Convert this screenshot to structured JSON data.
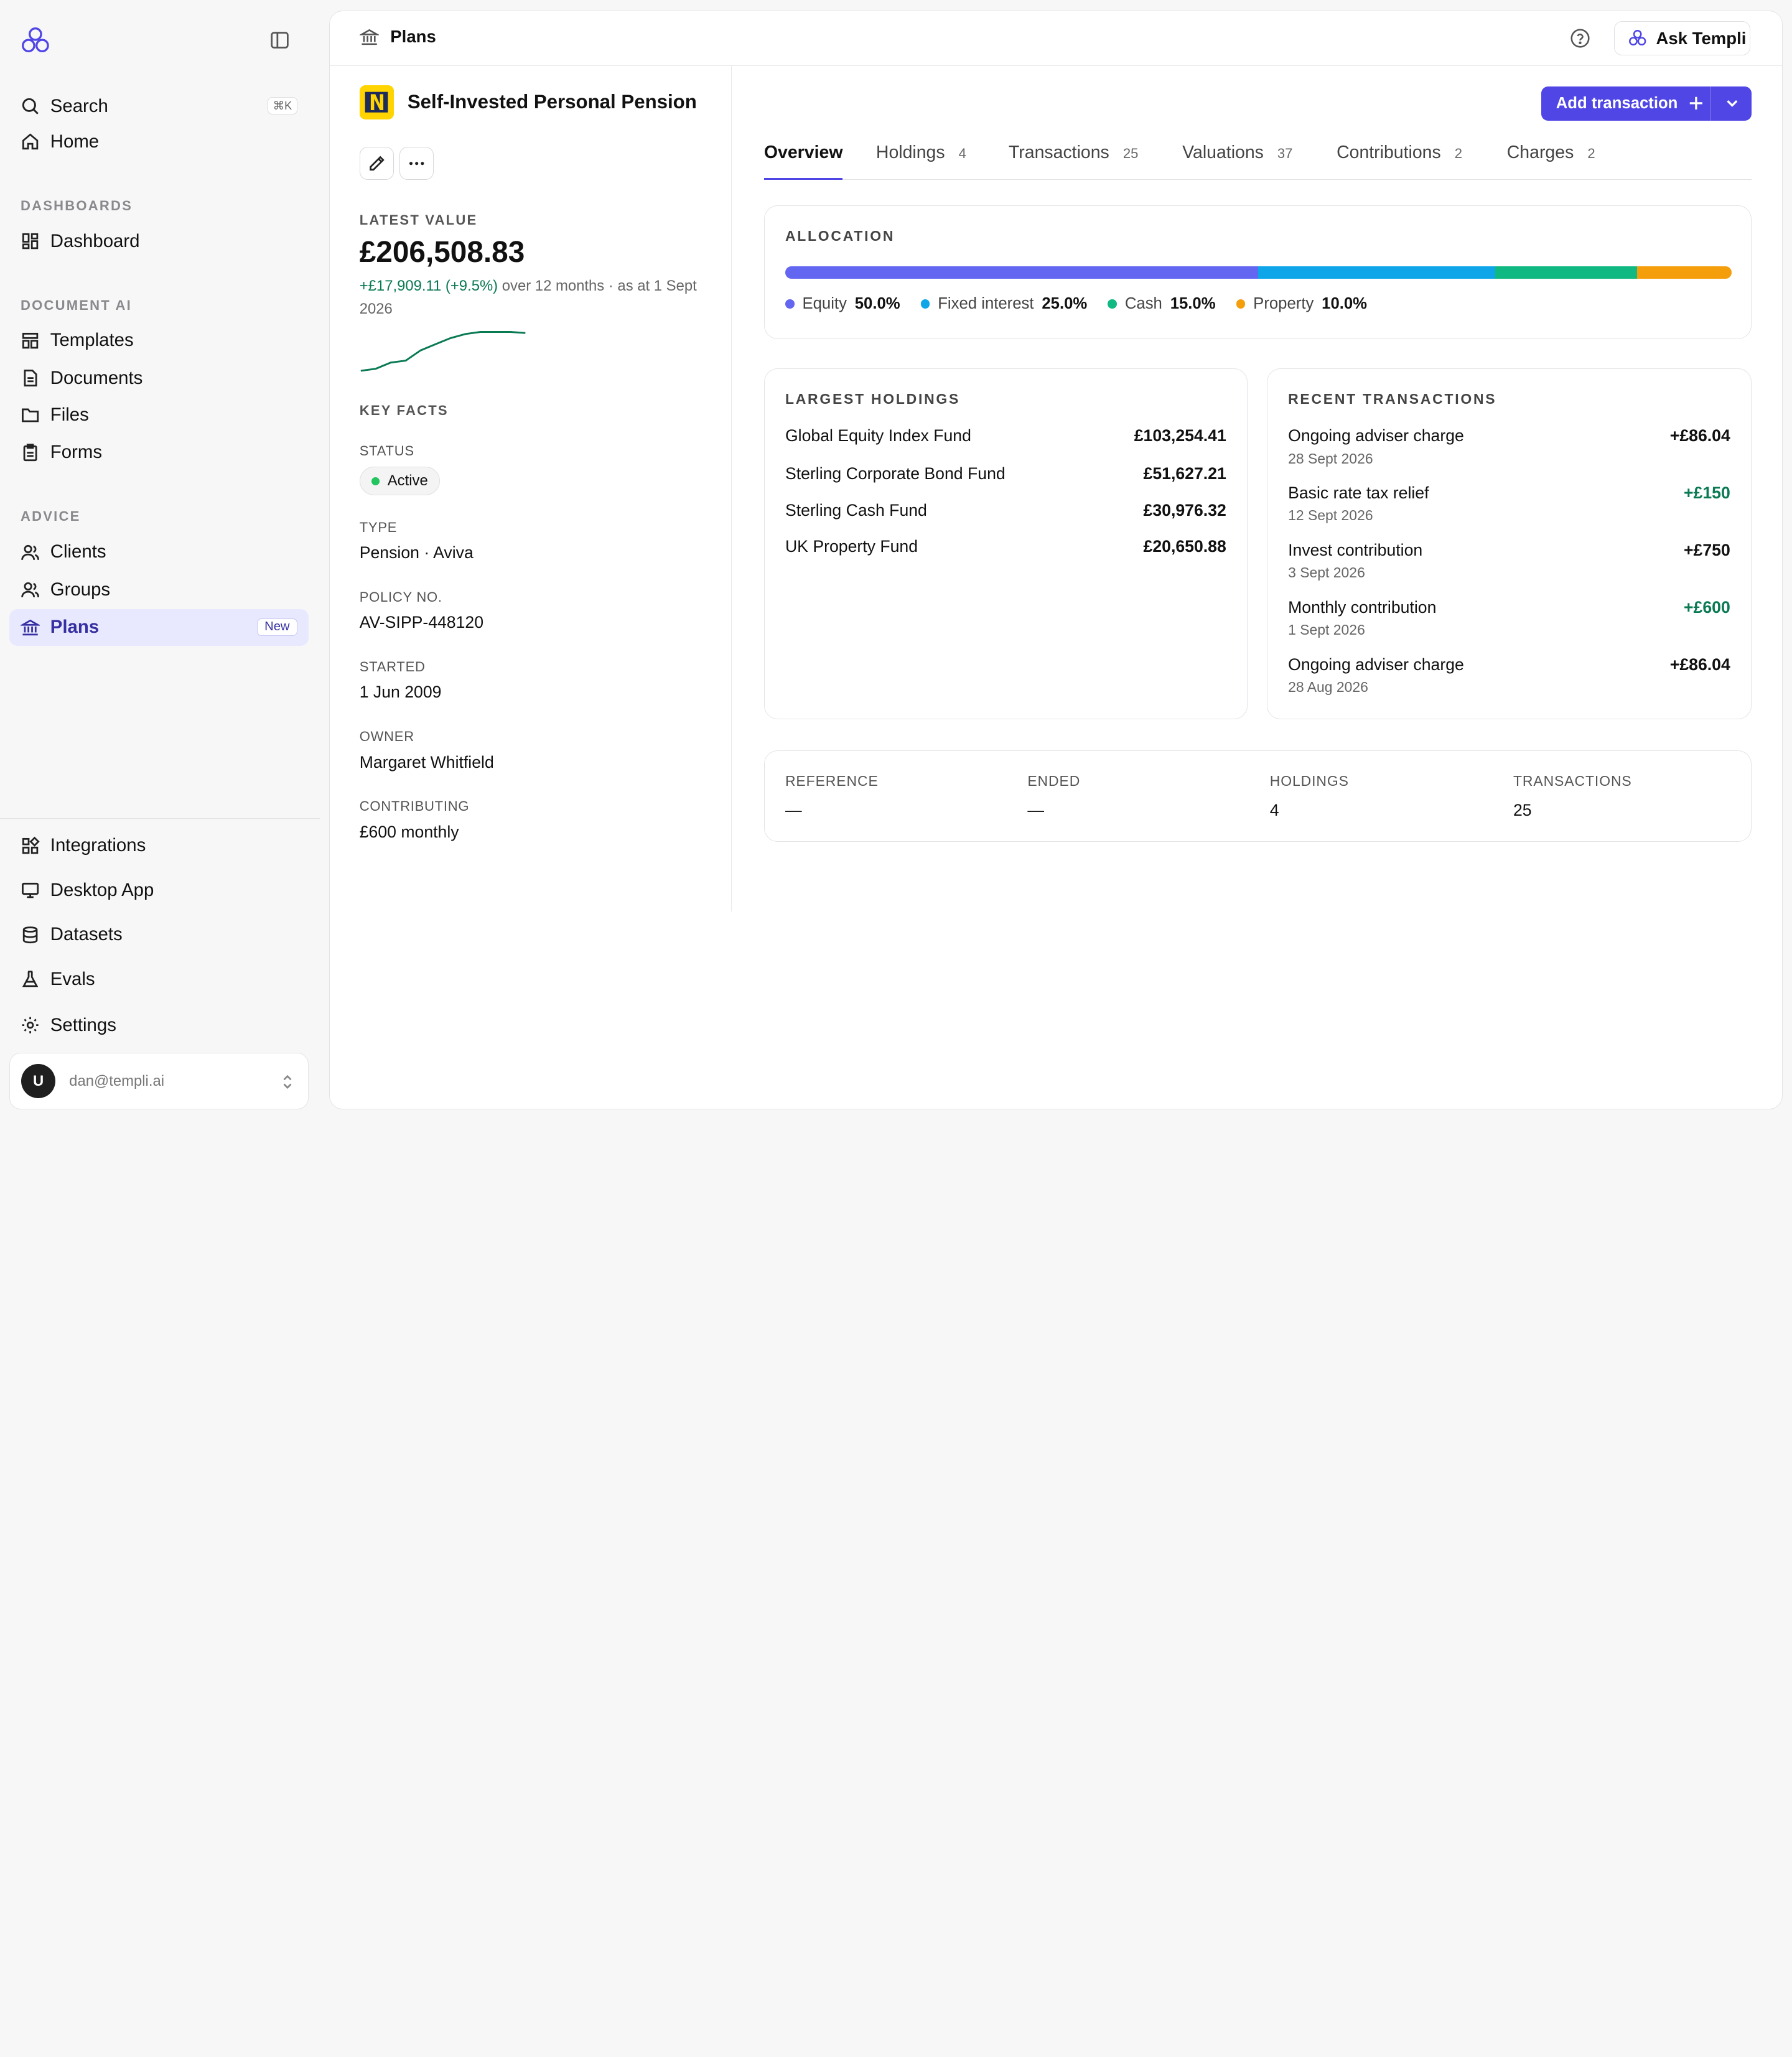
{
  "sidebar": {
    "search_label": "Search",
    "search_shortcut": "⌘K",
    "home_label": "Home",
    "sections": [
      "DASHBOARDS",
      "DOCUMENT AI",
      "ADVICE"
    ],
    "dashboard_label": "Dashboard",
    "templates_label": "Templates",
    "documents_label": "Documents",
    "files_label": "Files",
    "forms_label": "Forms",
    "clients_label": "Clients",
    "groups_label": "Groups",
    "plans_label": "Plans",
    "plans_badge": "New",
    "integrations_label": "Integrations",
    "desktop_label": "Desktop App",
    "datasets_label": "Datasets",
    "evals_label": "Evals",
    "settings_label": "Settings",
    "user_initial": "U",
    "user_email": "dan@templi.ai"
  },
  "header": {
    "breadcrumb": "Plans",
    "ask_label": "Ask Templi"
  },
  "plan": {
    "title": "Self-Invested Personal Pension",
    "latest_value_label": "LATEST VALUE",
    "latest_value": "£206,508.83",
    "change": "+£17,909.11 (+9.5%)",
    "change_suffix": " over 12 months · as at 1 Sept 2026",
    "sparkline": [
      0,
      1,
      4,
      5,
      10,
      13,
      16,
      18,
      19,
      19,
      19,
      18.5
    ],
    "key_facts_label": "KEY FACTS",
    "facts": {
      "status_label": "STATUS",
      "status": "Active",
      "type_label": "TYPE",
      "type": "Pension · Aviva",
      "policy_label": "POLICY NO.",
      "policy": "AV-SIPP-448120",
      "started_label": "STARTED",
      "started": "1 Jun 2009",
      "owner_label": "OWNER",
      "owner": "Margaret Whitfield",
      "contributing_label": "CONTRIBUTING",
      "contributing": "£600 monthly"
    }
  },
  "actions": {
    "add_transaction": "Add transaction"
  },
  "tabs": [
    {
      "label": "Overview",
      "count": ""
    },
    {
      "label": "Holdings",
      "count": "4"
    },
    {
      "label": "Transactions",
      "count": "25"
    },
    {
      "label": "Valuations",
      "count": "37"
    },
    {
      "label": "Contributions",
      "count": "2"
    },
    {
      "label": "Charges",
      "count": "2"
    }
  ],
  "allocation": {
    "label": "ALLOCATION",
    "items": [
      {
        "name": "Equity",
        "pct": "50.0%",
        "value": 50,
        "color": "#6366f1"
      },
      {
        "name": "Fixed interest",
        "pct": "25.0%",
        "value": 25,
        "color": "#0ea5e9"
      },
      {
        "name": "Cash",
        "pct": "15.0%",
        "value": 15,
        "color": "#10b981"
      },
      {
        "name": "Property",
        "pct": "10.0%",
        "value": 10,
        "color": "#f59e0b"
      }
    ]
  },
  "holdings": {
    "label": "LARGEST HOLDINGS",
    "rows": [
      {
        "name": "Global Equity Index Fund",
        "value": "£103,254.41"
      },
      {
        "name": "Sterling Corporate Bond Fund",
        "value": "£51,627.21"
      },
      {
        "name": "Sterling Cash Fund",
        "value": "£30,976.32"
      },
      {
        "name": "UK Property Fund",
        "value": "£20,650.88"
      }
    ]
  },
  "transactions": {
    "label": "RECENT TRANSACTIONS",
    "rows": [
      {
        "name": "Ongoing adviser charge",
        "date": "28 Sept 2026",
        "amount": "+£86.04"
      },
      {
        "name": "Basic rate tax relief",
        "date": "12 Sept 2026",
        "amount": "+£150"
      },
      {
        "name": "Invest contribution",
        "date": "3 Sept 2026",
        "amount": "+£750"
      },
      {
        "name": "Monthly contribution",
        "date": "1 Sept 2026",
        "amount": "+£600"
      },
      {
        "name": "Ongoing adviser charge",
        "date": "28 Aug 2026",
        "amount": "+£86.04"
      }
    ]
  },
  "summary": {
    "reference_label": "REFERENCE",
    "reference": "—",
    "ended_label": "ENDED",
    "ended": "—",
    "holdings_label": "HOLDINGS",
    "holdings": "4",
    "transactions_label": "TRANSACTIONS",
    "transactions": "25"
  }
}
